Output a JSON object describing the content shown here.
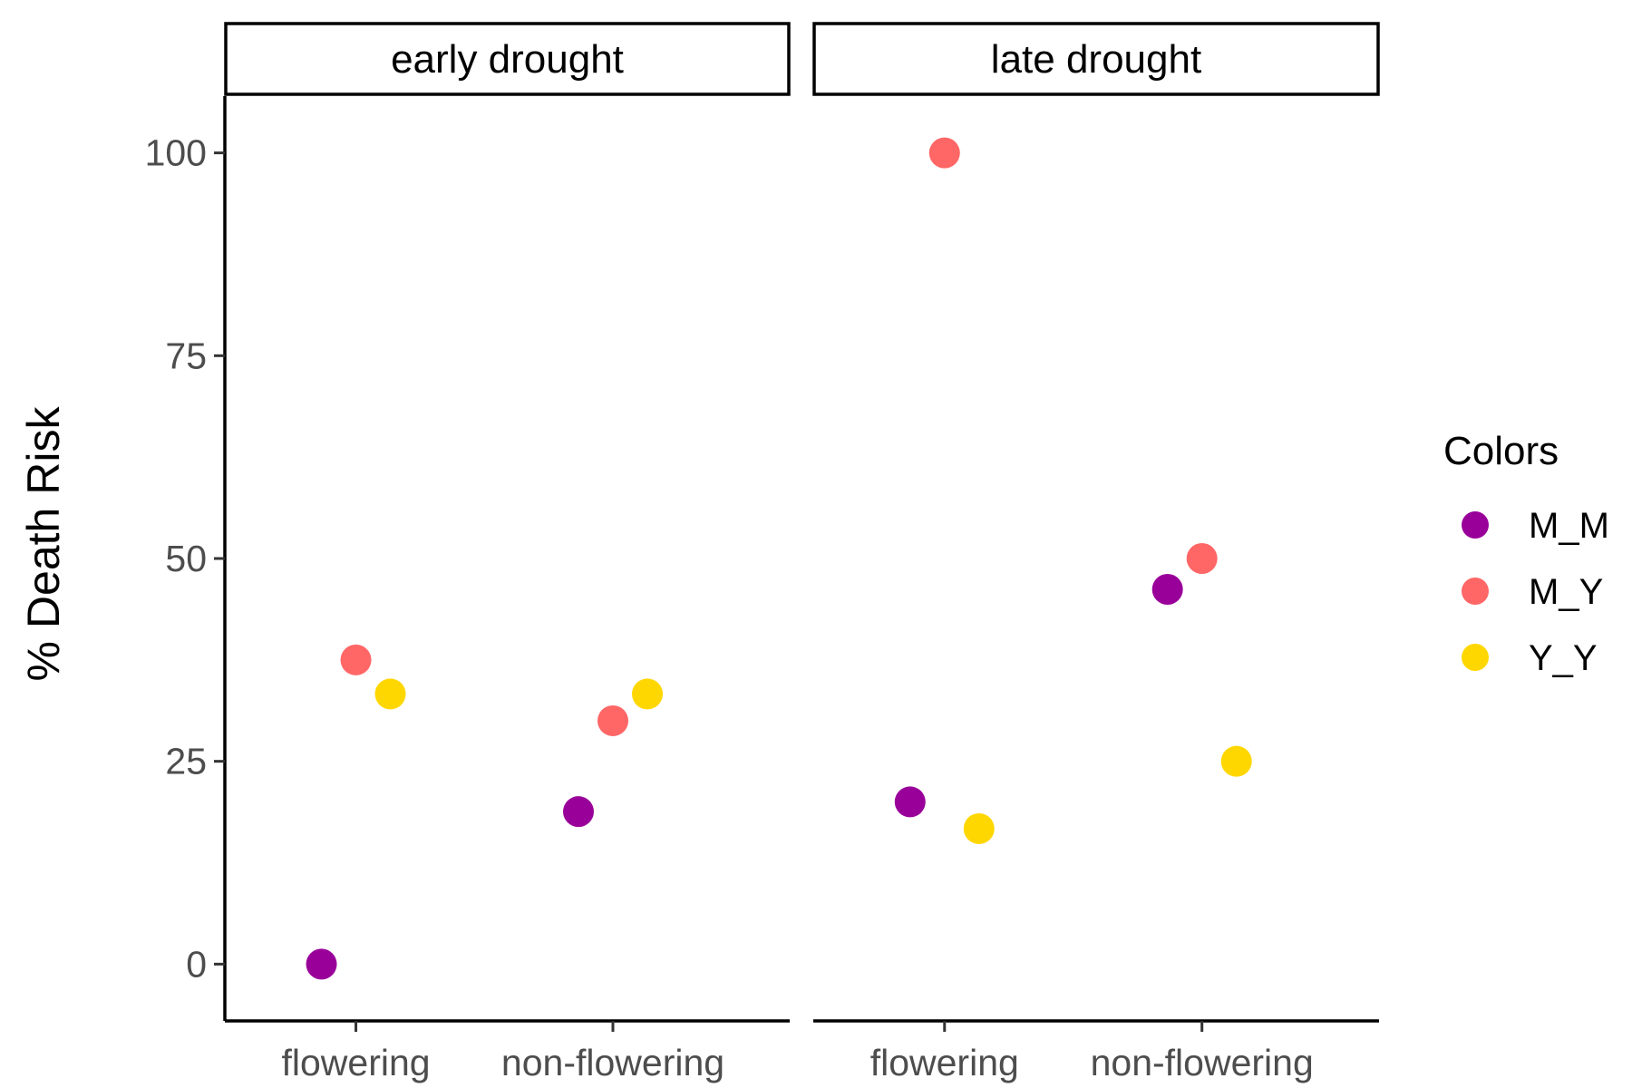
{
  "chart_data": {
    "type": "scatter",
    "ylabel": "% Death Risk",
    "xlabel": "",
    "title": "",
    "ylim": [
      -7,
      107
    ],
    "yticks": [
      0,
      25,
      50,
      75,
      100
    ],
    "categories": [
      "flowering",
      "non-flowering"
    ],
    "grid": false,
    "legend": {
      "title": "Colors",
      "placement": "right"
    },
    "series": [
      {
        "name": "M_M",
        "color": "#990099"
      },
      {
        "name": "M_Y",
        "color": "#ff6666"
      },
      {
        "name": "Y_Y",
        "color": "#ffd700"
      }
    ],
    "panels": [
      {
        "label": "early drought",
        "points": [
          {
            "category": "flowering",
            "series": "M_M",
            "y": 0
          },
          {
            "category": "flowering",
            "series": "M_Y",
            "y": 37.5
          },
          {
            "category": "flowering",
            "series": "Y_Y",
            "y": 33.3
          },
          {
            "category": "non-flowering",
            "series": "M_M",
            "y": 18.8
          },
          {
            "category": "non-flowering",
            "series": "M_Y",
            "y": 30
          },
          {
            "category": "non-flowering",
            "series": "Y_Y",
            "y": 33.3
          }
        ]
      },
      {
        "label": "late drought",
        "points": [
          {
            "category": "flowering",
            "series": "M_M",
            "y": 20
          },
          {
            "category": "flowering",
            "series": "M_Y",
            "y": 100
          },
          {
            "category": "flowering",
            "series": "Y_Y",
            "y": 16.7
          },
          {
            "category": "non-flowering",
            "series": "M_M",
            "y": 46.2
          },
          {
            "category": "non-flowering",
            "series": "M_Y",
            "y": 50
          },
          {
            "category": "non-flowering",
            "series": "Y_Y",
            "y": 25
          }
        ]
      }
    ]
  }
}
